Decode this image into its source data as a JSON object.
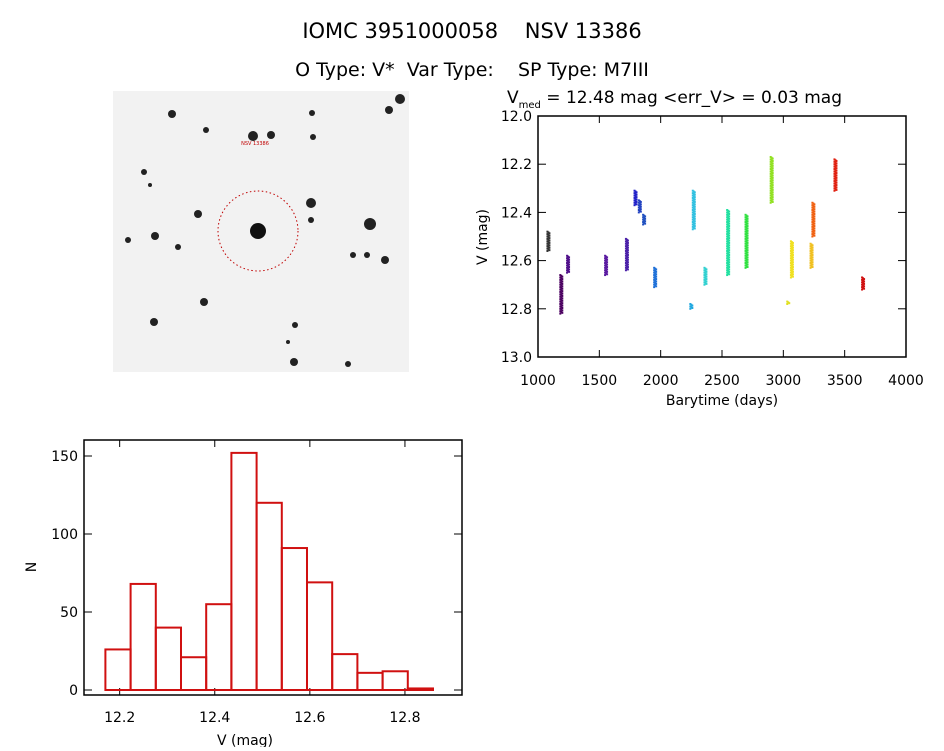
{
  "header": {
    "title": "IOMC 3951000058    NSV 13386",
    "subtitle": "O Type: V*  Var Type:    SP Type: M7III"
  },
  "image_panel": {
    "target_label": "NSV 13386",
    "circle_color": "#c00000"
  },
  "chart_data": [
    {
      "type": "scatter",
      "title_main": "V",
      "title_sub": "med",
      "title_rest": " = 12.48 mag <err_V> = 0.03 mag",
      "xlabel": "Barytime (days)",
      "ylabel": "V (mag)",
      "xlim": [
        1000,
        4000
      ],
      "ylim": [
        13.0,
        12.0
      ],
      "y_inverted": true,
      "xticks": [
        "1000",
        "1500",
        "2000",
        "2500",
        "3000",
        "3500",
        "4000"
      ],
      "yticks": [
        "12.0",
        "12.2",
        "12.4",
        "12.6",
        "12.8",
        "13.0"
      ],
      "groups": [
        {
          "x": 1085,
          "vmin": 12.48,
          "vmax": 12.56,
          "color": "#333333"
        },
        {
          "x": 1190,
          "vmin": 12.66,
          "vmax": 12.82,
          "color": "#4b0060"
        },
        {
          "x": 1245,
          "vmin": 12.58,
          "vmax": 12.65,
          "color": "#50108a"
        },
        {
          "x": 1555,
          "vmin": 12.58,
          "vmax": 12.66,
          "color": "#5a1aa0"
        },
        {
          "x": 1725,
          "vmin": 12.51,
          "vmax": 12.64,
          "color": "#4a20a8"
        },
        {
          "x": 1795,
          "vmin": 12.31,
          "vmax": 12.37,
          "color": "#2020c8"
        },
        {
          "x": 1830,
          "vmin": 12.35,
          "vmax": 12.4,
          "color": "#2040c0"
        },
        {
          "x": 1865,
          "vmin": 12.41,
          "vmax": 12.45,
          "color": "#2050c0"
        },
        {
          "x": 1955,
          "vmin": 12.63,
          "vmax": 12.71,
          "color": "#1e70d8"
        },
        {
          "x": 2250,
          "vmin": 12.78,
          "vmax": 12.8,
          "color": "#20a8e0"
        },
        {
          "x": 2270,
          "vmin": 12.31,
          "vmax": 12.47,
          "color": "#30c0e0"
        },
        {
          "x": 2365,
          "vmin": 12.63,
          "vmax": 12.7,
          "color": "#30d0d0"
        },
        {
          "x": 2550,
          "vmin": 12.39,
          "vmax": 12.66,
          "color": "#20e0a0"
        },
        {
          "x": 2700,
          "vmin": 12.41,
          "vmax": 12.63,
          "color": "#30e040"
        },
        {
          "x": 2905,
          "vmin": 12.17,
          "vmax": 12.36,
          "color": "#90e020"
        },
        {
          "x": 3040,
          "vmin": 12.77,
          "vmax": 12.78,
          "color": "#e0e020"
        },
        {
          "x": 3070,
          "vmin": 12.52,
          "vmax": 12.67,
          "color": "#f0e020"
        },
        {
          "x": 3230,
          "vmin": 12.53,
          "vmax": 12.63,
          "color": "#f0c020"
        },
        {
          "x": 3245,
          "vmin": 12.36,
          "vmax": 12.5,
          "color": "#f06010"
        },
        {
          "x": 3425,
          "vmin": 12.18,
          "vmax": 12.31,
          "color": "#e02010"
        },
        {
          "x": 3650,
          "vmin": 12.67,
          "vmax": 12.72,
          "color": "#d01010"
        }
      ]
    },
    {
      "type": "bar",
      "subtype": "histogram",
      "xlabel": "V (mag)",
      "ylabel": "N",
      "xlim": [
        12.125,
        12.92
      ],
      "ylim": [
        0,
        160
      ],
      "xticks": [
        "12.2",
        "12.4",
        "12.6",
        "12.8"
      ],
      "yticks": [
        "0",
        "50",
        "100",
        "150"
      ],
      "bin_start": 12.17,
      "bin_width": 0.053,
      "values": [
        26,
        68,
        40,
        21,
        55,
        152,
        120,
        91,
        69,
        23,
        11,
        12,
        1
      ],
      "color": "#d01010"
    }
  ]
}
